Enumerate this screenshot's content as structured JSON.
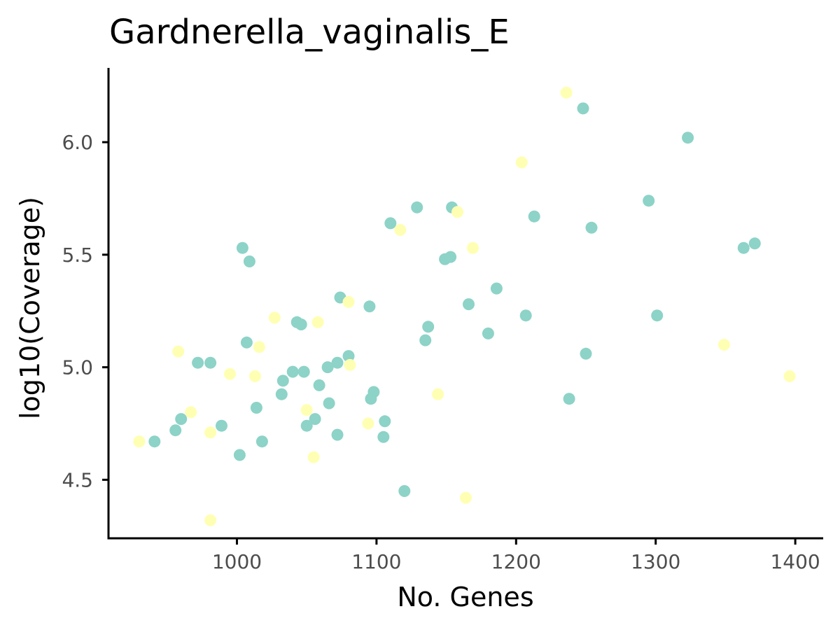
{
  "chart_data": {
    "type": "scatter",
    "title": "Gardnerella_vaginalis_E",
    "xlabel": "No. Genes",
    "ylabel": "log10(Coverage)",
    "xlim": [
      908,
      1420
    ],
    "ylim": [
      4.24,
      6.33
    ],
    "x_ticks": [
      1000,
      1100,
      1200,
      1300,
      1400
    ],
    "y_ticks": [
      4.5,
      5.0,
      5.5,
      6.0
    ],
    "x_tick_labels": [
      "1000",
      "1100",
      "1200",
      "1300",
      "1400"
    ],
    "y_tick_labels": [
      "4.5",
      "5.0",
      "5.5",
      "6.0"
    ],
    "grid": false,
    "legend": "none",
    "colors": {
      "teal": "#8dd3c7",
      "yellow": "#ffffb3"
    },
    "series": [
      {
        "color_key": "teal",
        "points": [
          [
            941,
            4.67
          ],
          [
            956,
            4.72
          ],
          [
            960,
            4.77
          ],
          [
            972,
            5.02
          ],
          [
            981,
            5.02
          ],
          [
            989,
            4.74
          ],
          [
            1002,
            4.61
          ],
          [
            1004,
            5.53
          ],
          [
            1007,
            5.11
          ],
          [
            1009,
            5.47
          ],
          [
            1014,
            4.82
          ],
          [
            1018,
            4.67
          ],
          [
            1032,
            4.88
          ],
          [
            1033,
            4.94
          ],
          [
            1040,
            4.98
          ],
          [
            1043,
            5.2
          ],
          [
            1046,
            5.19
          ],
          [
            1048,
            4.98
          ],
          [
            1050,
            4.74
          ],
          [
            1056,
            4.77
          ],
          [
            1059,
            4.92
          ],
          [
            1065,
            5.0
          ],
          [
            1066,
            4.84
          ],
          [
            1072,
            5.02
          ],
          [
            1072,
            4.7
          ],
          [
            1074,
            5.31
          ],
          [
            1080,
            5.05
          ],
          [
            1095,
            5.27
          ],
          [
            1096,
            4.86
          ],
          [
            1098,
            4.89
          ],
          [
            1105,
            4.69
          ],
          [
            1106,
            4.76
          ],
          [
            1110,
            5.64
          ],
          [
            1120,
            4.45
          ],
          [
            1129,
            5.71
          ],
          [
            1135,
            5.12
          ],
          [
            1137,
            5.18
          ],
          [
            1149,
            5.48
          ],
          [
            1153,
            5.49
          ],
          [
            1154,
            5.71
          ],
          [
            1166,
            5.28
          ],
          [
            1180,
            5.15
          ],
          [
            1186,
            5.35
          ],
          [
            1207,
            5.23
          ],
          [
            1213,
            5.67
          ],
          [
            1238,
            4.86
          ],
          [
            1248,
            6.15
          ],
          [
            1250,
            5.06
          ],
          [
            1254,
            5.62
          ],
          [
            1295,
            5.74
          ],
          [
            1301,
            5.23
          ],
          [
            1323,
            6.02
          ],
          [
            1363,
            5.53
          ],
          [
            1371,
            5.55
          ]
        ]
      },
      {
        "color_key": "yellow",
        "points": [
          [
            930,
            4.67
          ],
          [
            958,
            5.07
          ],
          [
            967,
            4.8
          ],
          [
            981,
            4.32
          ],
          [
            981,
            4.71
          ],
          [
            995,
            4.97
          ],
          [
            1013,
            4.96
          ],
          [
            1016,
            5.09
          ],
          [
            1027,
            5.22
          ],
          [
            1050,
            4.81
          ],
          [
            1055,
            4.6
          ],
          [
            1058,
            5.2
          ],
          [
            1080,
            5.29
          ],
          [
            1081,
            5.01
          ],
          [
            1094,
            4.75
          ],
          [
            1117,
            5.61
          ],
          [
            1144,
            4.88
          ],
          [
            1158,
            5.69
          ],
          [
            1164,
            4.42
          ],
          [
            1169,
            5.53
          ],
          [
            1204,
            5.91
          ],
          [
            1236,
            6.22
          ],
          [
            1349,
            5.1
          ],
          [
            1396,
            4.96
          ]
        ]
      }
    ]
  }
}
